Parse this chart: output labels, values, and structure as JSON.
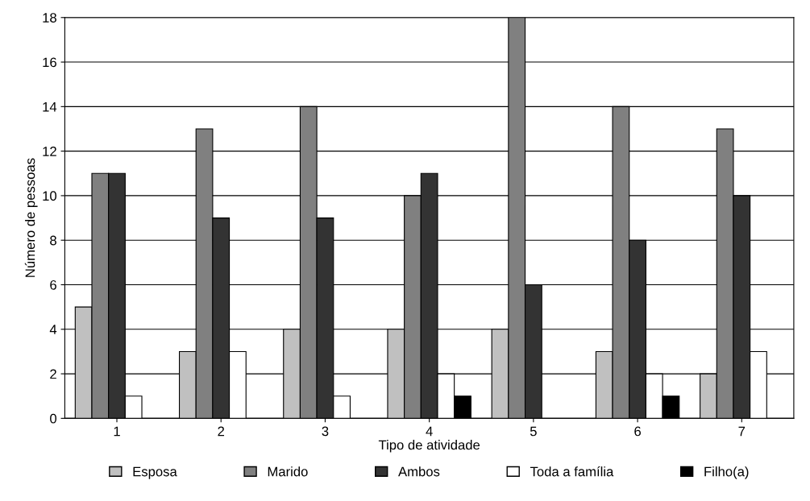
{
  "chart_data": {
    "type": "bar",
    "xlabel": "Tipo de atividade",
    "ylabel": "Número de pessoas",
    "categories": [
      "1",
      "2",
      "3",
      "4",
      "5",
      "6",
      "7"
    ],
    "series": [
      {
        "name": "Esposa",
        "color": "#c0c0c0",
        "values": [
          5,
          3,
          4,
          4,
          4,
          3,
          2
        ]
      },
      {
        "name": "Marido",
        "color": "#808080",
        "values": [
          11,
          13,
          14,
          10,
          18,
          14,
          13
        ]
      },
      {
        "name": "Ambos",
        "color": "#333333",
        "values": [
          11,
          9,
          9,
          11,
          6,
          8,
          10
        ]
      },
      {
        "name": "Toda a família",
        "color": "#ffffff",
        "values": [
          1,
          3,
          1,
          2,
          0,
          2,
          3
        ]
      },
      {
        "name": "Filho(a)",
        "color": "#000000",
        "values": [
          0,
          0,
          0,
          1,
          0,
          1,
          0
        ]
      }
    ],
    "ylim": [
      0,
      18
    ],
    "yticks": [
      0,
      2,
      4,
      6,
      8,
      10,
      12,
      14,
      16,
      18
    ],
    "grid": "y",
    "legend": "bottom"
  }
}
